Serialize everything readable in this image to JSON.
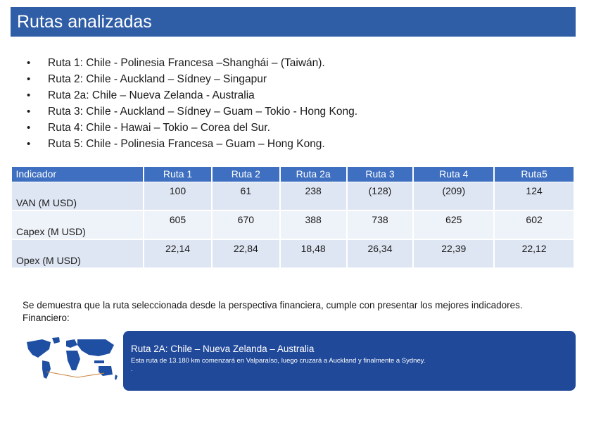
{
  "title": "Rutas analizadas",
  "routes": [
    "Ruta 1: Chile - Polinesia Francesa –Shanghái – (Taiwán).",
    "Ruta 2: Chile - Auckland – Sídney – Singapur",
    "Ruta 2a: Chile – Nueva Zelanda - Australia",
    "Ruta 3: Chile - Auckland – Sídney – Guam – Tokio - Hong Kong.",
    "Ruta 4: Chile - Hawai – Tokio – Corea del Sur.",
    "Ruta 5: Chile - Polinesia Francesa – Guam – Hong Kong."
  ],
  "table": {
    "headers": [
      "Indicador",
      "Ruta 1",
      "Ruta 2",
      "Ruta 2a",
      "Ruta 3",
      "Ruta 4",
      "Ruta5"
    ],
    "rows": [
      {
        "label": "VAN (M USD)",
        "values": [
          "100",
          "61",
          "238",
          "(128)",
          "(209)",
          "124"
        ]
      },
      {
        "label": "Capex (M USD)",
        "values": [
          "605",
          "670",
          "388",
          "738",
          "625",
          "602"
        ]
      },
      {
        "label": "Opex (M USD)",
        "values": [
          "22,14",
          "22,84",
          "18,48",
          "26,34",
          "22,39",
          "22,12"
        ]
      }
    ]
  },
  "conclusion": {
    "line1": "Se demuestra que la ruta seleccionada desde la perspectiva financiera, cumple con presentar los mejores indicadores.",
    "line2": "Financiero:"
  },
  "selected_route": {
    "title": "Ruta 2A: Chile – Nueva Zelanda – Australia",
    "description": "Esta ruta de 13.180 km comenzará en Valparaíso, luego cruzará a Auckland y finalmente a Sydney.",
    "dot": "."
  },
  "colors": {
    "title_bar": "#2f5da6",
    "table_header": "#3e6fc0",
    "row_dark": "#dfe6f3",
    "row_light": "#eef2f9",
    "route_box": "#20499a",
    "map_land": "#1f4fa3",
    "route_line": "#c9843b"
  }
}
